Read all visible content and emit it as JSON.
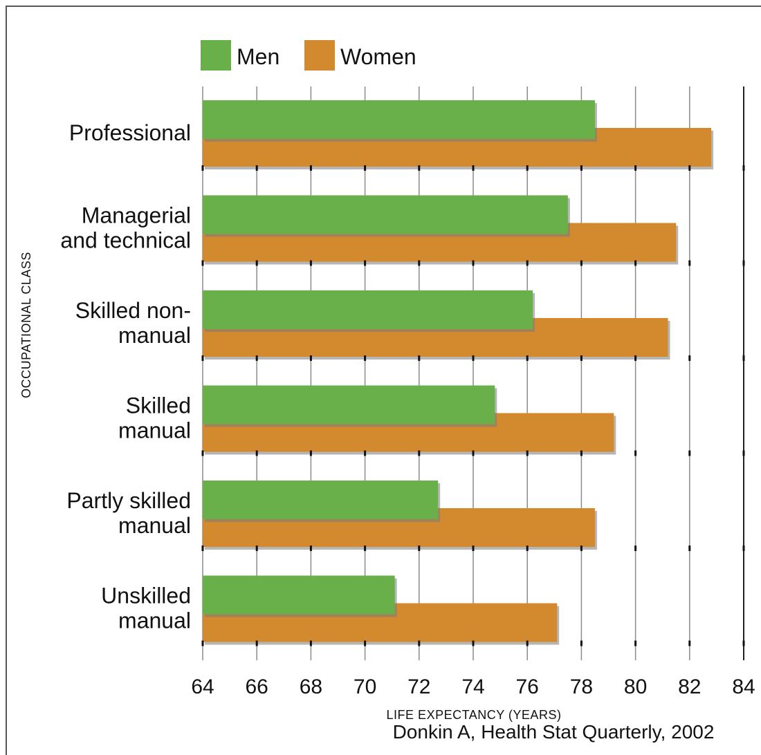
{
  "chart_data": {
    "type": "bar",
    "orientation": "horizontal",
    "categories": [
      [
        "Professional"
      ],
      [
        "Managerial",
        "and technical"
      ],
      [
        "Skilled non-",
        "manual"
      ],
      [
        "Skilled",
        "manual"
      ],
      [
        "Partly skilled",
        "manual"
      ],
      [
        "Unskilled",
        "manual"
      ]
    ],
    "series": [
      {
        "name": "Men",
        "color": "#6ab04a",
        "values": [
          78.5,
          77.5,
          76.2,
          74.8,
          72.7,
          71.1
        ]
      },
      {
        "name": "Women",
        "color": "#d38a2f",
        "values": [
          82.8,
          81.5,
          81.2,
          79.2,
          78.5,
          77.1
        ]
      }
    ],
    "xlabel": "LIFE EXPECTANCY (YEARS)",
    "ylabel": "OCCUPATIONAL CLASS",
    "xlim": [
      64,
      84
    ],
    "xticks": [
      "64",
      "66",
      "68",
      "70",
      "72",
      "74",
      "76",
      "78",
      "80",
      "82",
      "84"
    ],
    "grid": "vertical",
    "legend_position": "top-left",
    "source": "Donkin A, Health Stat Quarterly, 2002"
  }
}
